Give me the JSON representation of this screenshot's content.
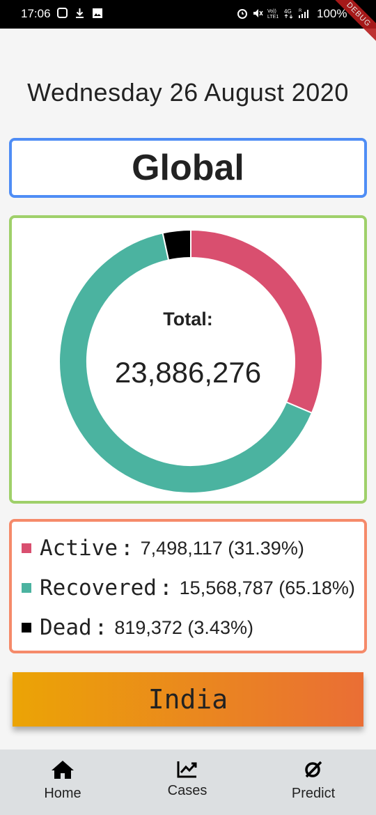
{
  "status_bar": {
    "time": "17:06",
    "battery": "100%",
    "left_icons": [
      "instagram-icon",
      "download-icon",
      "gallery-icon"
    ],
    "right_icons": [
      "alarm-icon",
      "mute-icon",
      "volte-icon",
      "4g-icon",
      "signal-icon",
      "battery-icon"
    ],
    "debug_label": "DEBUG"
  },
  "date": "Wednesday 26 August 2020",
  "region": "Global",
  "chart_data": {
    "type": "pie",
    "categories": [
      "Active",
      "Recovered",
      "Dead"
    ],
    "values": [
      7498117,
      15568787,
      819372
    ],
    "colors": [
      "#d94f6f",
      "#4bb3a0",
      "#000000"
    ],
    "center_label": "Total:",
    "center_value": "23,886,276"
  },
  "legend": [
    {
      "name": "Active",
      "value": "7,498,117 (31.39%)",
      "color": "#d94f6f"
    },
    {
      "name": "Recovered",
      "value": "15,568,787 (65.18%)",
      "color": "#4bb3a0"
    },
    {
      "name": "Dead",
      "value": "819,372 (3.43%)",
      "color": "#000000"
    }
  ],
  "country_button": "India",
  "nav": [
    {
      "label": "Home",
      "icon": "home-icon"
    },
    {
      "label": "Cases",
      "icon": "trending-up-icon"
    },
    {
      "label": "Predict",
      "icon": "predict-icon"
    }
  ]
}
